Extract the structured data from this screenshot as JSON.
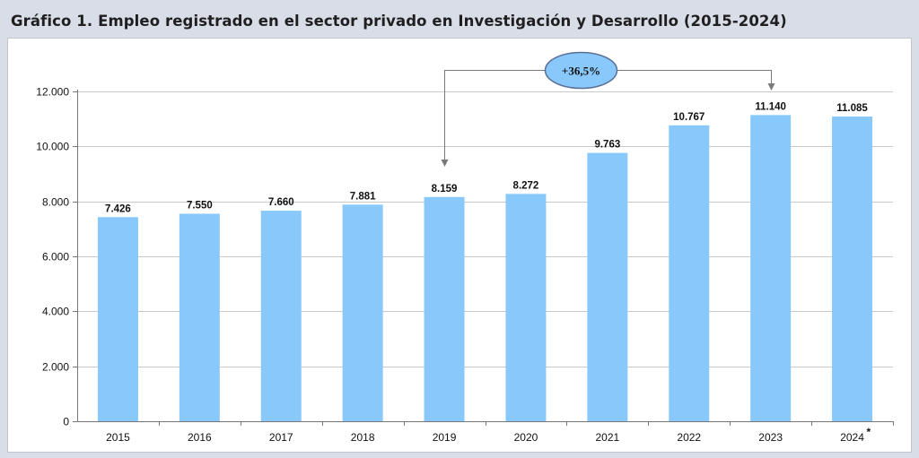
{
  "chart_data": {
    "type": "bar",
    "title": "Gráfico 1. Empleo registrado en el sector privado en Investigación y Desarrollo (2015-2024)",
    "categories": [
      "2015",
      "2016",
      "2017",
      "2018",
      "2019",
      "2020",
      "2021",
      "2022",
      "2023",
      "2024"
    ],
    "category_marks": [
      "",
      "",
      "",
      "",
      "",
      "",
      "",
      "",
      "",
      "*"
    ],
    "values": [
      7426,
      7550,
      7660,
      7881,
      8159,
      8272,
      9763,
      10767,
      11140,
      11085
    ],
    "value_labels": [
      "7.426",
      "7.550",
      "7.660",
      "7.881",
      "8.159",
      "8.272",
      "9.763",
      "10.767",
      "11.140",
      "11.085"
    ],
    "ylim": [
      0,
      12000
    ],
    "yticks": [
      0,
      2000,
      4000,
      6000,
      8000,
      10000,
      12000
    ],
    "ytick_labels": [
      "0",
      "2.000",
      "4.000",
      "6.000",
      "8.000",
      "10.000",
      "12.000"
    ],
    "xlabel": "",
    "ylabel": "",
    "grid": true,
    "legend": "none",
    "bar_color": "#88c8fa",
    "annotation": {
      "text": "+36,5%",
      "from": "2019",
      "to": "2023",
      "fill": "#88c8fa"
    }
  }
}
